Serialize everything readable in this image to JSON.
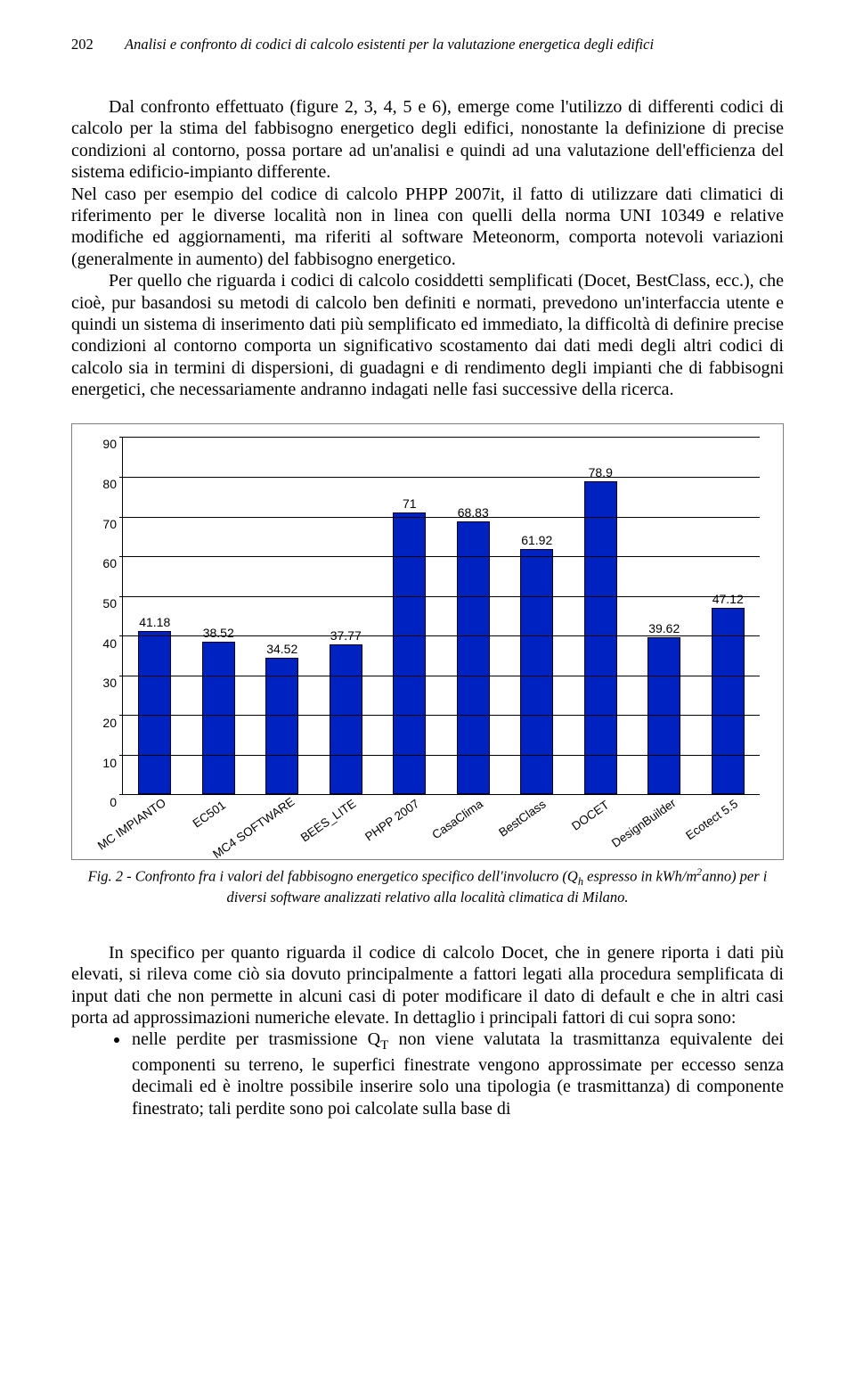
{
  "header": {
    "page_number": "202",
    "running_title": "Analisi e confronto di codici di calcolo esistenti per la valutazione energetica degli edifici"
  },
  "paragraphs": {
    "p1": "Dal confronto effettuato (figure 2, 3, 4, 5 e 6), emerge come l'utilizzo di differenti codici di calcolo per la stima del fabbisogno energetico degli edifici, nonostante la definizione di precise condizioni al contorno, possa portare ad un'analisi e quindi ad una valutazione dell'efficienza del sistema edificio-impianto differente.",
    "p2": "Nel caso per esempio del codice di calcolo PHPP 2007it, il fatto di utilizzare dati climatici di riferimento per le diverse località non in linea con quelli della norma UNI 10349 e relative modifiche ed aggiornamenti, ma riferiti al software Meteonorm, comporta notevoli variazioni (generalmente in aumento) del fabbisogno energetico.",
    "p3": "Per quello che riguarda i codici di calcolo cosiddetti semplificati (Docet, BestClass, ecc.), che cioè, pur basandosi su metodi di calcolo ben definiti e normati, prevedono un'interfaccia utente e quindi un sistema di inserimento dati più semplificato ed immediato, la difficoltà di definire precise condizioni al contorno comporta un significativo scostamento dai dati medi degli altri codici di calcolo sia in termini di dispersioni, di guadagni e di rendimento degli impianti che di fabbisogni energetici, che necessariamente andranno indagati nelle fasi successive della ricerca.",
    "p4": "In specifico per quanto riguarda il codice di calcolo Docet, che in genere riporta i dati più elevati, si rileva come ciò sia dovuto principalmente a fattori legati alla procedura semplificata di input dati che non permette in alcuni casi di poter modificare il dato di default e che in altri casi porta ad approssimazioni numeriche elevate. In dettaglio i principali fattori di cui sopra sono:",
    "bullet1_a": "nelle perdite per trasmissione Q",
    "bullet1_sub": "T",
    "bullet1_b": " non viene valutata la trasmittanza equivalente dei componenti su terreno, le superfici finestrate vengono approssimate per eccesso senza decimali ed è inoltre possibile inserire solo una tipologia (e trasmittanza) di componente finestrato; tali perdite sono poi calcolate sulla base di"
  },
  "chart": {
    "type": "bar",
    "ylim": [
      0,
      90
    ],
    "ytick_step": 10,
    "yticks": [
      "0",
      "10",
      "20",
      "30",
      "40",
      "50",
      "60",
      "70",
      "80",
      "90"
    ],
    "categories": [
      "MC IMPIANTO",
      "EC501",
      "MC4 SOFTWARE",
      "BEES_LITE",
      "PHPP 2007",
      "CasaClima",
      "BestClass",
      "DOCET",
      "DesignBuilder",
      "Ecotect 5.5"
    ],
    "values": [
      41.18,
      38.52,
      34.52,
      37.77,
      71,
      68.83,
      61.92,
      78.9,
      39.62,
      47.12
    ],
    "value_labels": [
      "41.18",
      "38.52",
      "34.52",
      "37.77",
      "71",
      "68.83",
      "61.92",
      "78.9",
      "39.62",
      "47.12"
    ],
    "bar_color": "#0022c0",
    "bar_border": "#000033",
    "grid_color": "#000000",
    "background_color": "#ffffff",
    "label_fontsize": 14,
    "axis_fontsize": 14
  },
  "caption": {
    "prefix": "Fig. 2 - Confronto fra i valori del fabbisogno energetico specifico dell'involucro (Q",
    "sub": "h",
    "middle": " espresso in kWh/m",
    "sup": "2",
    "suffix": "anno) per i diversi software analizzati relativo alla località climatica di Milano."
  }
}
